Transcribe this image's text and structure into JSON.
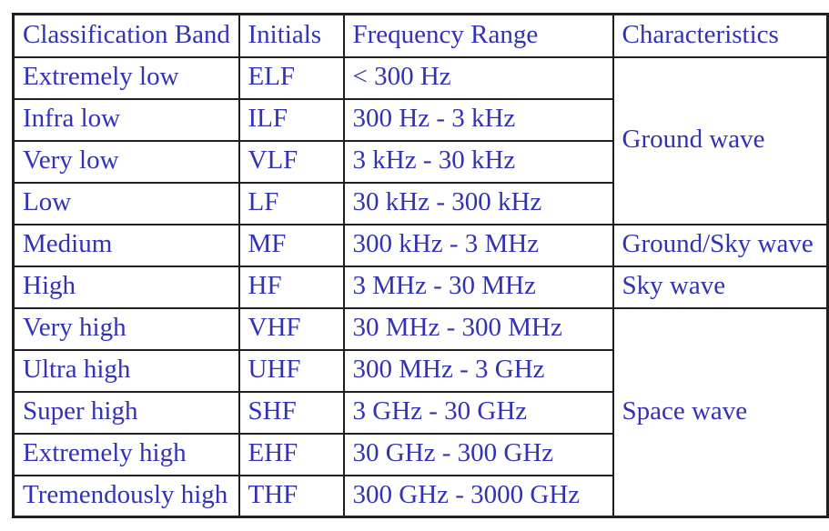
{
  "table": {
    "headers": {
      "band": "Classification Band",
      "initials": "Initials",
      "frequency": "Frequency Range",
      "characteristics": "Characteristics"
    },
    "rows": [
      {
        "band": "Extremely low",
        "initials": "ELF",
        "frequency": "< 300 Hz"
      },
      {
        "band": "Infra low",
        "initials": "ILF",
        "frequency": "300 Hz - 3 kHz"
      },
      {
        "band": "Very low",
        "initials": "VLF",
        "frequency": "3 kHz - 30 kHz"
      },
      {
        "band": "Low",
        "initials": "LF",
        "frequency": "30 kHz - 300 kHz"
      },
      {
        "band": "Medium",
        "initials": "MF",
        "frequency": "300 kHz - 3 MHz"
      },
      {
        "band": "High",
        "initials": "HF",
        "frequency": "3 MHz - 30 MHz"
      },
      {
        "band": "Very high",
        "initials": "VHF",
        "frequency": "30 MHz - 300 MHz"
      },
      {
        "band": "Ultra high",
        "initials": "UHF",
        "frequency": "300 MHz - 3 GHz"
      },
      {
        "band": "Super high",
        "initials": "SHF",
        "frequency": "3 GHz - 30 GHz"
      },
      {
        "band": "Extremely high",
        "initials": "EHF",
        "frequency": "30 GHz - 300 GHz"
      },
      {
        "band": "Tremendously high",
        "initials": "THF",
        "frequency": "300 GHz - 3000 GHz"
      }
    ],
    "characteristics": [
      {
        "label": "Ground wave",
        "rowspan": 4
      },
      {
        "label": "Ground/Sky wave",
        "rowspan": 1
      },
      {
        "label": "Sky wave",
        "rowspan": 1
      },
      {
        "label": "Space wave",
        "rowspan": 5
      }
    ],
    "colors": {
      "text": "#3232b4",
      "border": "#1f1f1f",
      "background": "#ffffff"
    }
  }
}
